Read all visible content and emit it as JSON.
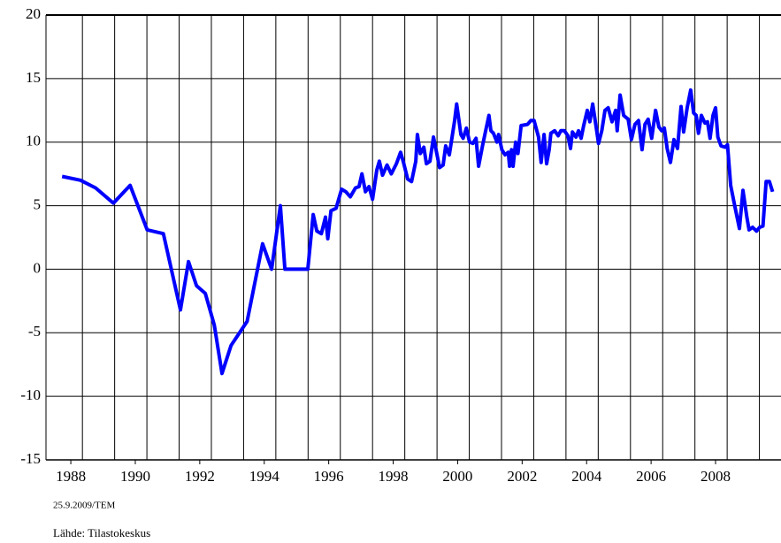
{
  "chart_data": {
    "type": "line",
    "color": "#0000ff",
    "x": [
      1987.73,
      1988.3,
      1988.77,
      1989.32,
      1989.84,
      1990.37,
      1990.87,
      1991.4,
      1991.65,
      1991.9,
      1992.17,
      1992.45,
      1992.69,
      1992.97,
      1993.47,
      1993.95,
      1994.23,
      1994.5,
      1994.64,
      1995.35,
      1995.52,
      1995.63,
      1995.77,
      1995.9,
      1995.97,
      1996.07,
      1996.23,
      1996.4,
      1996.53,
      1996.67,
      1996.83,
      1996.94,
      1997.03,
      1997.14,
      1997.25,
      1997.36,
      1997.49,
      1997.57,
      1997.67,
      1997.81,
      1997.94,
      1998.1,
      1998.23,
      1998.32,
      1998.45,
      1998.57,
      1998.7,
      1998.75,
      1998.84,
      1998.95,
      1999.03,
      1999.14,
      1999.25,
      1999.44,
      1999.55,
      1999.63,
      1999.74,
      1999.9,
      1999.97,
      2000.1,
      2000.17,
      2000.27,
      2000.37,
      2000.47,
      2000.57,
      2000.65,
      2000.77,
      2000.87,
      2000.97,
      2001.03,
      2001.11,
      2001.22,
      2001.27,
      2001.37,
      2001.47,
      2001.57,
      2001.61,
      2001.67,
      2001.72,
      2001.8,
      2001.87,
      2001.97,
      2002.17,
      2002.27,
      2002.37,
      2002.51,
      2002.59,
      2002.68,
      2002.76,
      2002.84,
      2002.89,
      2003.01,
      2003.12,
      2003.2,
      2003.31,
      2003.42,
      2003.5,
      2003.56,
      2003.67,
      2003.75,
      2003.83,
      2003.91,
      2004.02,
      2004.1,
      2004.19,
      2004.3,
      2004.37,
      2004.47,
      2004.57,
      2004.67,
      2004.79,
      2004.9,
      2004.95,
      2005.04,
      2005.15,
      2005.29,
      2005.39,
      2005.5,
      2005.61,
      2005.72,
      2005.81,
      2005.91,
      2006.02,
      2006.14,
      2006.24,
      2006.33,
      2006.41,
      2006.5,
      2006.6,
      2006.71,
      2006.82,
      2006.93,
      2007.01,
      2007.12,
      2007.23,
      2007.32,
      2007.4,
      2007.47,
      2007.56,
      2007.67,
      2007.75,
      2007.83,
      2007.92,
      2008.0,
      2008.07,
      2008.17,
      2008.3,
      2008.37,
      2008.47,
      2008.57,
      2008.74,
      2008.85,
      2008.97,
      2009.04,
      2009.15,
      2009.27,
      2009.37,
      2009.47,
      2009.57,
      2009.67,
      2009.77
    ],
    "values": [
      7.3,
      7.0,
      6.4,
      5.2,
      6.6,
      3.1,
      2.8,
      -3.2,
      0.6,
      -1.3,
      -1.9,
      -4.4,
      -8.2,
      -6.0,
      -4.1,
      2.0,
      0.0,
      5.0,
      0.0,
      0.0,
      4.3,
      3.0,
      2.8,
      4.1,
      2.4,
      4.6,
      4.8,
      6.3,
      6.1,
      5.7,
      6.4,
      6.5,
      7.5,
      6.1,
      6.5,
      5.5,
      7.8,
      8.5,
      7.4,
      8.2,
      7.5,
      8.3,
      9.2,
      8.4,
      7.1,
      6.9,
      8.5,
      10.6,
      9.1,
      9.6,
      8.3,
      8.5,
      10.4,
      8.0,
      8.2,
      9.7,
      9.0,
      11.6,
      13.0,
      10.6,
      10.3,
      11.1,
      10.0,
      9.9,
      10.3,
      8.1,
      9.7,
      10.9,
      12.1,
      10.9,
      10.7,
      10.0,
      10.6,
      9.4,
      9.0,
      9.2,
      8.1,
      9.4,
      8.1,
      10.0,
      9.1,
      11.3,
      11.4,
      11.7,
      11.7,
      10.4,
      8.4,
      10.6,
      8.3,
      9.4,
      10.7,
      10.9,
      10.5,
      10.9,
      10.9,
      10.5,
      9.5,
      10.8,
      10.4,
      10.9,
      10.3,
      11.3,
      12.5,
      11.6,
      13.0,
      11.1,
      9.9,
      10.9,
      12.5,
      12.7,
      11.6,
      12.5,
      10.9,
      13.7,
      12.1,
      11.8,
      10.2,
      11.4,
      11.7,
      9.4,
      11.4,
      11.8,
      10.3,
      12.5,
      11.2,
      10.9,
      11.1,
      9.5,
      8.4,
      10.2,
      9.5,
      12.8,
      10.8,
      12.7,
      14.1,
      12.3,
      12.1,
      10.7,
      12.1,
      11.5,
      11.6,
      10.3,
      12.1,
      12.7,
      10.4,
      9.7,
      9.6,
      9.8,
      6.6,
      5.3,
      3.2,
      6.2,
      4.1,
      3.1,
      3.3,
      3.0,
      3.3,
      3.4,
      6.9,
      6.9,
      6.1
    ],
    "xlim": [
      1987.23,
      2010.03
    ],
    "xticks": [
      1988,
      1990,
      1992,
      1994,
      1996,
      1998,
      2000,
      2002,
      2004,
      2006,
      2008
    ],
    "xgrid": [
      1988.36,
      1989.36,
      1990.36,
      1991.36,
      1992.36,
      1993.36,
      1994.36,
      1995.36,
      1996.36,
      1997.36,
      1998.36,
      1999.36,
      2000.36,
      2001.36,
      2002.36,
      2003.36,
      2004.36,
      2005.36,
      2006.36,
      2007.36,
      2008.36,
      2009.36
    ],
    "ylim": [
      -15,
      20
    ],
    "yticks": [
      -15,
      -10,
      -5,
      0,
      5,
      10,
      15,
      20
    ],
    "grid": true
  },
  "footer": {
    "date": "25.9.2009/TEM",
    "source": "Lähde: Tilastokeskus"
  }
}
